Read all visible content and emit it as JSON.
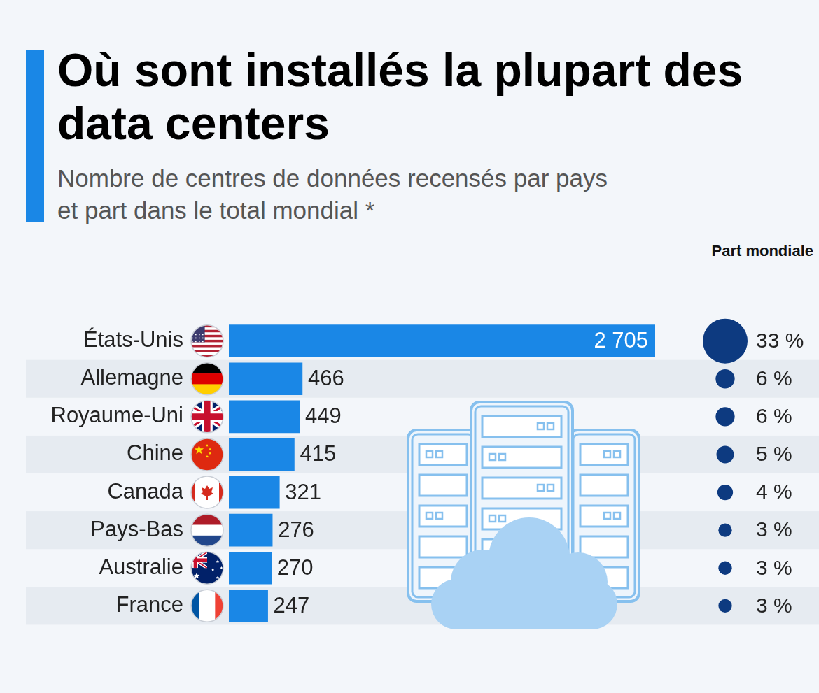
{
  "chart_data": {
    "type": "bar",
    "orientation": "horizontal",
    "title": "Où sont installés la plupart des data centers",
    "subtitle": "Nombre de centres de données recensés par pays et part dans le total mondial *",
    "categories": [
      "États-Unis",
      "Allemagne",
      "Royaume-Uni",
      "Chine",
      "Canada",
      "Pays-Bas",
      "Australie",
      "France"
    ],
    "values": [
      2705,
      466,
      449,
      415,
      321,
      276,
      270,
      247
    ],
    "value_labels": [
      "2 705",
      "466",
      "449",
      "415",
      "321",
      "276",
      "270",
      "247"
    ],
    "color": "#1a87e6",
    "xlim": [
      0,
      2705
    ],
    "grid": false,
    "data_labels": true,
    "tick_labels": "y",
    "shares": {
      "title": "Part mondiale",
      "values": [
        33,
        6,
        6,
        5,
        4,
        3,
        3,
        3
      ],
      "value_labels": [
        "33 %",
        "6 %",
        "6 %",
        "5 %",
        "4 %",
        "3 %",
        "3 %",
        "3 %"
      ],
      "color": "#0d3a80"
    }
  }
}
